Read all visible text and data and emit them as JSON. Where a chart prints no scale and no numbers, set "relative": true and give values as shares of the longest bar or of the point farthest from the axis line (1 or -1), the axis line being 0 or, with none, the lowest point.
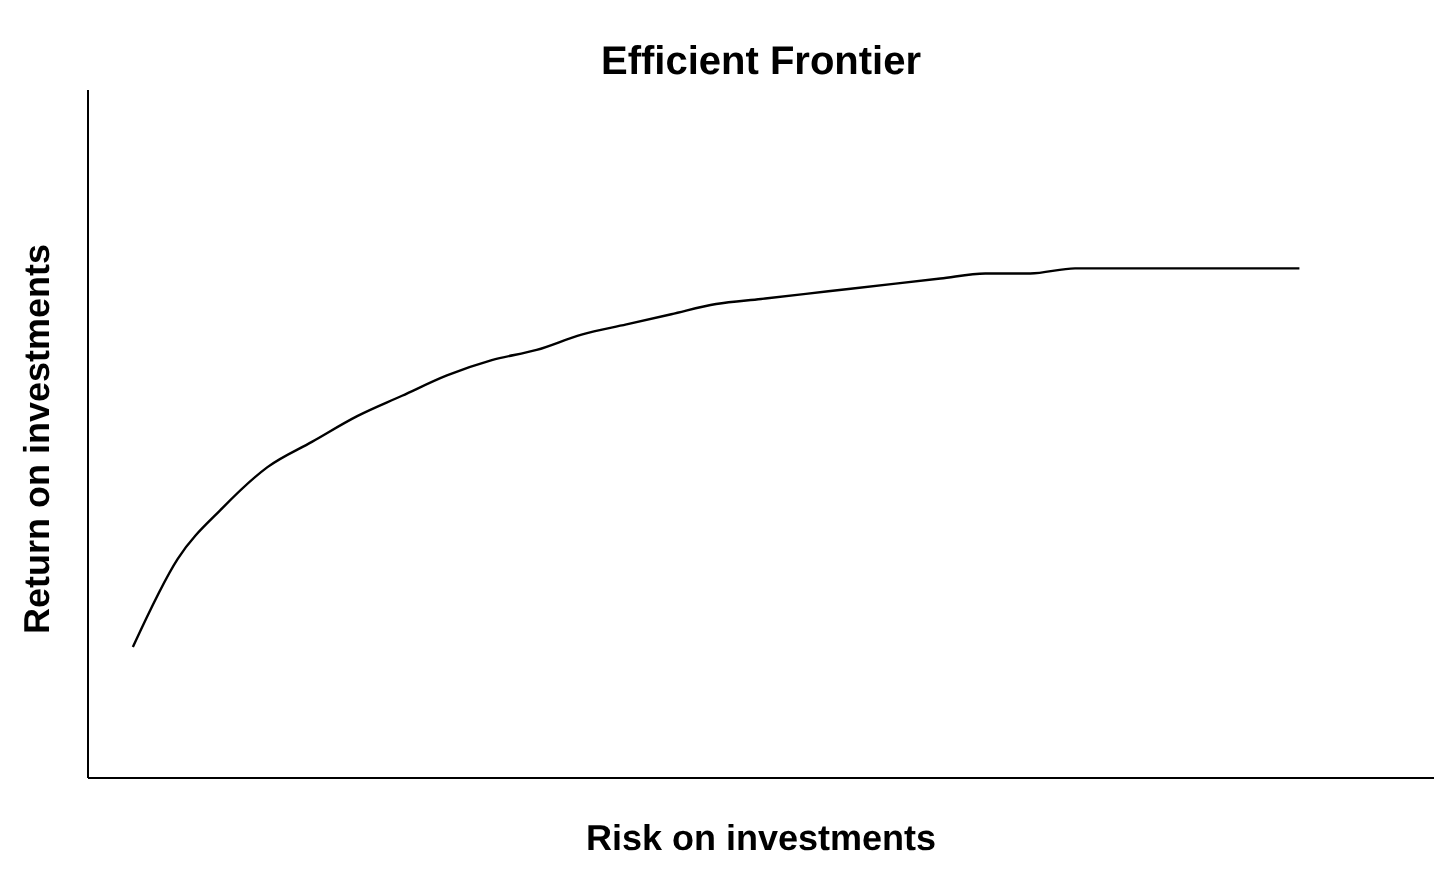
{
  "chart_data": {
    "type": "line",
    "title": "Efficient Frontier",
    "xlabel": "Risk on investments",
    "ylabel": "Return on investments",
    "relative": true,
    "categories": [
      null,
      null,
      null,
      null,
      null,
      null,
      null,
      null,
      null,
      null,
      null,
      null,
      null,
      null,
      null,
      null,
      null,
      null,
      null,
      null,
      null,
      null,
      null,
      null,
      null,
      null,
      null,
      null,
      null,
      null,
      null
    ],
    "series": [
      {
        "color": "#000000",
        "values": [
          null,
          0.257,
          0.43,
          0.53,
          0.61,
          0.66,
          0.71,
          0.75,
          0.79,
          0.82,
          0.84,
          0.87,
          0.89,
          0.91,
          0.93,
          0.94,
          0.95,
          0.96,
          0.97,
          0.98,
          0.99,
          0.99,
          1,
          1,
          1,
          1,
          1,
          1,
          null,
          null,
          null
        ]
      }
    ],
    "marker": "none",
    "line_style": "solid"
  }
}
